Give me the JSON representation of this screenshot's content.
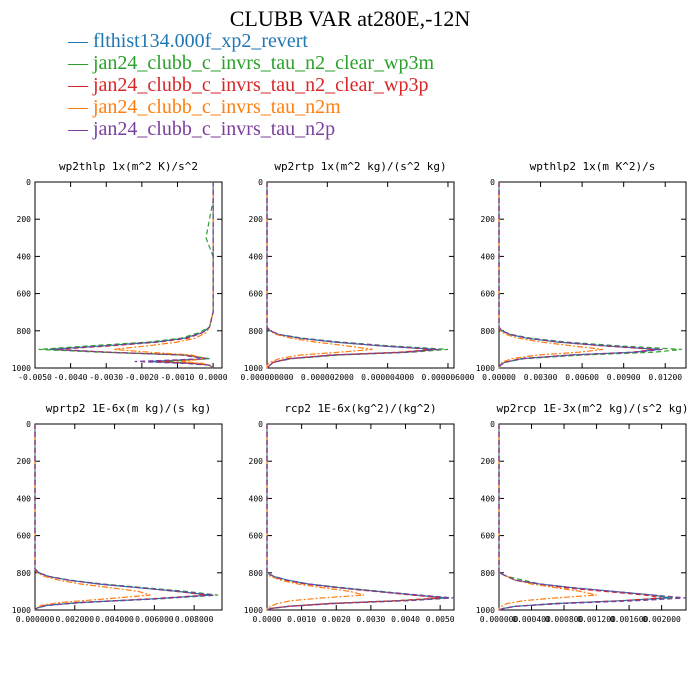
{
  "title": "CLUBB VAR at280E,-12N",
  "legend": [
    {
      "label": "— flthist134.000f_xp2_revert",
      "color": "#1f77b4"
    },
    {
      "label": "— jan24_clubb_c_invrs_tau_n2_clear_wp3m",
      "color": "#2ca02c"
    },
    {
      "label": "— jan24_clubb_c_invrs_tau_n2_clear_wp3p",
      "color": "#d62728"
    },
    {
      "label": "— jan24_clubb_c_invrs_tau_n2m",
      "color": "#ff7f0e"
    },
    {
      "label": "— jan24_clubb_c_invrs_tau_n2p",
      "color": "#7b3f9e"
    }
  ],
  "chart_data": [
    {
      "type": "line",
      "title": "wp2thlp  1x(m^2 K)/s^2",
      "xlim": [
        -0.005,
        0.00025
      ],
      "ylim": [
        1000,
        0
      ],
      "xticks": [
        -0.005,
        -0.004,
        -0.003,
        -0.002,
        -0.001,
        0.0
      ],
      "xticklabels": [
        "-0.0050",
        "-0.0040",
        "-0.0030",
        "-0.0020",
        "-0.0010",
        "0.0000"
      ],
      "yticks": [
        0,
        200,
        400,
        600,
        800,
        1000
      ],
      "y": [
        0,
        100,
        200,
        300,
        400,
        500,
        600,
        700,
        780,
        810,
        840,
        860,
        880,
        900,
        915,
        930,
        950,
        965,
        975,
        985,
        1000
      ],
      "series": [
        {
          "color": "#1f77b4",
          "dash": "",
          "values": [
            0,
            0,
            0,
            0,
            0,
            0,
            0,
            0,
            -0.0001,
            -0.0003,
            -0.0008,
            -0.0016,
            -0.003,
            -0.0046,
            -0.003,
            -0.0008,
            -0.0001,
            -0.0018,
            -0.0006,
            -0.0001,
            0
          ]
        },
        {
          "color": "#2ca02c",
          "dash": "5,3",
          "values": [
            0,
            0,
            -0.0001,
            -0.0002,
            0,
            0,
            0,
            0,
            -0.0001,
            -0.0004,
            -0.0009,
            -0.0018,
            -0.0034,
            -0.0049,
            -0.0032,
            -0.0008,
            -0.0001,
            -0.0014,
            -0.0005,
            -0.0001,
            0
          ]
        },
        {
          "color": "#d62728",
          "dash": "5,3",
          "values": [
            0,
            0,
            0,
            0,
            0,
            0,
            0,
            0,
            -0.0001,
            -0.0003,
            -0.0007,
            -0.0015,
            -0.0028,
            -0.0044,
            -0.0029,
            -0.0008,
            -0.0002,
            -0.0016,
            -0.0005,
            -0.0001,
            0
          ]
        },
        {
          "color": "#ff7f0e",
          "dash": "6,2,2,2",
          "values": [
            0,
            0,
            0,
            0,
            0,
            0,
            0,
            0,
            -0.0001,
            -0.0002,
            -0.0005,
            -0.001,
            -0.0018,
            -0.0028,
            -0.0018,
            -0.0006,
            -0.0002,
            -0.0009,
            -0.0003,
            -0.0001,
            0
          ]
        },
        {
          "color": "#7b3f9e",
          "dash": "5,3",
          "values": [
            0,
            0,
            0,
            0,
            0,
            0,
            0,
            0,
            -0.0001,
            -0.0003,
            -0.0008,
            -0.0016,
            -0.003,
            -0.0045,
            -0.003,
            -0.0009,
            -0.0002,
            -0.0022,
            -0.0008,
            -0.0001,
            0
          ]
        }
      ]
    },
    {
      "type": "line",
      "title": "wp2rtp  1x(m^2 kg)/(s^2 kg)",
      "xlim": [
        0,
        6.2e-06
      ],
      "ylim": [
        1000,
        0
      ],
      "xticks": [
        0,
        2e-06,
        4e-06,
        6e-06
      ],
      "xticklabels": [
        "0.000000000",
        "0.000002000",
        "0.000004000",
        "0.000006000"
      ],
      "yticks": [
        0,
        200,
        400,
        600,
        800,
        1000
      ],
      "y": [
        0,
        780,
        800,
        820,
        840,
        860,
        880,
        900,
        915,
        930,
        950,
        970,
        985,
        1000
      ],
      "series": [
        {
          "color": "#1f77b4",
          "dash": "",
          "values": [
            0,
            0,
            1e-07,
            4e-07,
            1.1e-06,
            2.2e-06,
            3.7e-06,
            5.6e-06,
            4.5e-06,
            2.2e-06,
            7e-07,
            2e-07,
            1e-07,
            0
          ]
        },
        {
          "color": "#2ca02c",
          "dash": "5,3",
          "values": [
            0,
            0,
            1e-07,
            4e-07,
            1.2e-06,
            2.4e-06,
            4e-06,
            6e-06,
            4.8e-06,
            2.4e-06,
            8e-07,
            2e-07,
            1e-07,
            0
          ]
        },
        {
          "color": "#d62728",
          "dash": "5,3",
          "values": [
            0,
            0,
            1e-07,
            4e-07,
            1.1e-06,
            2.2e-06,
            3.7e-06,
            5.5e-06,
            4.4e-06,
            2.1e-06,
            7e-07,
            2e-07,
            1e-07,
            0
          ]
        },
        {
          "color": "#ff7f0e",
          "dash": "6,2,2,2",
          "values": [
            0,
            0,
            1e-07,
            3e-07,
            8e-07,
            1.6e-06,
            2.6e-06,
            3.5e-06,
            2.4e-06,
            1.1e-06,
            4e-07,
            1e-07,
            0,
            0
          ]
        },
        {
          "color": "#7b3f9e",
          "dash": "5,3",
          "values": [
            0,
            0,
            1e-07,
            4e-07,
            1.1e-06,
            2.3e-06,
            3.8e-06,
            5.7e-06,
            4.7e-06,
            2.3e-06,
            8e-07,
            2e-07,
            1e-07,
            0
          ]
        }
      ]
    },
    {
      "type": "line",
      "title": "wpthlp2  1x(m K^2)/s",
      "xlim": [
        0,
        0.0135
      ],
      "ylim": [
        1000,
        0
      ],
      "xticks": [
        0,
        0.003,
        0.006,
        0.009,
        0.012
      ],
      "xticklabels": [
        "0.00000",
        "0.00300",
        "0.00600",
        "0.00900",
        "0.01200"
      ],
      "yticks": [
        0,
        200,
        400,
        600,
        800,
        1000
      ],
      "y": [
        0,
        780,
        800,
        820,
        840,
        860,
        880,
        900,
        915,
        930,
        950,
        970,
        985,
        1000
      ],
      "series": [
        {
          "color": "#1f77b4",
          "dash": "",
          "values": [
            0,
            0,
            0.0002,
            0.0008,
            0.002,
            0.0042,
            0.0075,
            0.0115,
            0.0098,
            0.0052,
            0.0016,
            0.0004,
            0.0001,
            0
          ]
        },
        {
          "color": "#2ca02c",
          "dash": "5,3",
          "values": [
            0,
            0,
            0.0002,
            0.0009,
            0.0023,
            0.0048,
            0.0085,
            0.0132,
            0.0112,
            0.006,
            0.0018,
            0.0004,
            0.0001,
            0
          ]
        },
        {
          "color": "#d62728",
          "dash": "5,3",
          "values": [
            0,
            0,
            0.0002,
            0.0008,
            0.002,
            0.0042,
            0.0073,
            0.0112,
            0.0096,
            0.0051,
            0.0015,
            0.0004,
            0.0001,
            0
          ]
        },
        {
          "color": "#ff7f0e",
          "dash": "6,2,2,2",
          "values": [
            0,
            0,
            0.0001,
            0.0005,
            0.0014,
            0.003,
            0.0052,
            0.0075,
            0.0058,
            0.0028,
            0.0009,
            0.0002,
            0.0001,
            0
          ]
        },
        {
          "color": "#7b3f9e",
          "dash": "5,3",
          "values": [
            0,
            0,
            0.0002,
            0.0008,
            0.0021,
            0.0044,
            0.0078,
            0.0118,
            0.01,
            0.0054,
            0.0017,
            0.0004,
            0.0001,
            0
          ]
        }
      ]
    },
    {
      "type": "line",
      "title": "wprtp2  1E-6x(m kg)/(s kg)",
      "xlim": [
        0,
        0.0094
      ],
      "ylim": [
        1000,
        0
      ],
      "xticks": [
        0,
        0.002,
        0.004,
        0.006,
        0.008
      ],
      "xticklabels": [
        "0.000000",
        "0.002000",
        "0.004000",
        "0.006000",
        "0.008000"
      ],
      "yticks": [
        0,
        200,
        400,
        600,
        800,
        1000
      ],
      "y": [
        0,
        780,
        800,
        820,
        840,
        860,
        880,
        900,
        920,
        940,
        960,
        975,
        990,
        1000
      ],
      "series": [
        {
          "color": "#1f77b4",
          "dash": "",
          "values": [
            0,
            0,
            0.0002,
            0.0007,
            0.0017,
            0.0032,
            0.0052,
            0.0072,
            0.0088,
            0.006,
            0.0022,
            0.0006,
            0.0001,
            0
          ]
        },
        {
          "color": "#2ca02c",
          "dash": "5,3",
          "values": [
            0,
            0,
            0.0002,
            0.0007,
            0.0018,
            0.0034,
            0.0055,
            0.0076,
            0.0092,
            0.0063,
            0.0023,
            0.0006,
            0.0001,
            0
          ]
        },
        {
          "color": "#d62728",
          "dash": "5,3",
          "values": [
            0,
            0,
            0.0002,
            0.0007,
            0.0017,
            0.0032,
            0.0052,
            0.0071,
            0.0086,
            0.0058,
            0.0021,
            0.0005,
            0.0001,
            0
          ]
        },
        {
          "color": "#ff7f0e",
          "dash": "6,2,2,2",
          "values": [
            0,
            0,
            0.0001,
            0.0005,
            0.0012,
            0.0023,
            0.0038,
            0.0052,
            0.0058,
            0.0036,
            0.0012,
            0.0003,
            0.0001,
            0
          ]
        },
        {
          "color": "#7b3f9e",
          "dash": "5,3",
          "values": [
            0,
            0,
            0.0002,
            0.0007,
            0.0017,
            0.0033,
            0.0053,
            0.0073,
            0.009,
            0.0062,
            0.0023,
            0.0006,
            0.0001,
            0
          ]
        }
      ]
    },
    {
      "type": "line",
      "title": "rcp2  1E-6x(kg^2)/(kg^2)",
      "xlim": [
        0,
        0.0054
      ],
      "ylim": [
        1000,
        0
      ],
      "xticks": [
        0,
        0.001,
        0.002,
        0.003,
        0.004,
        0.005
      ],
      "xticklabels": [
        "0.0000",
        "0.0010",
        "0.0020",
        "0.0030",
        "0.0040",
        "0.0050"
      ],
      "yticks": [
        0,
        200,
        400,
        600,
        800,
        1000
      ],
      "y": [
        0,
        800,
        820,
        840,
        860,
        880,
        900,
        920,
        935,
        950,
        965,
        980,
        992,
        1000
      ],
      "series": [
        {
          "color": "#1f77b4",
          "dash": "",
          "values": [
            0,
            0,
            0.0002,
            0.0006,
            0.0012,
            0.0021,
            0.0032,
            0.0043,
            0.0052,
            0.0038,
            0.0018,
            0.0006,
            0.0001,
            0
          ]
        },
        {
          "color": "#2ca02c",
          "dash": "5,3",
          "values": [
            0,
            0,
            0.0002,
            0.0006,
            0.0012,
            0.0022,
            0.0033,
            0.0044,
            0.0053,
            0.0039,
            0.0019,
            0.0006,
            0.0001,
            0
          ]
        },
        {
          "color": "#d62728",
          "dash": "5,3",
          "values": [
            0,
            0,
            0.0002,
            0.0005,
            0.0011,
            0.002,
            0.0031,
            0.0042,
            0.005,
            0.0037,
            0.0018,
            0.0006,
            0.0001,
            0
          ]
        },
        {
          "color": "#ff7f0e",
          "dash": "6,2,2,2",
          "values": [
            0,
            0,
            0.0001,
            0.0004,
            0.0009,
            0.0016,
            0.0024,
            0.0028,
            0.0016,
            0.0007,
            0.0003,
            0.0001,
            0,
            0
          ]
        },
        {
          "color": "#7b3f9e",
          "dash": "5,3",
          "values": [
            0,
            0,
            0.0002,
            0.0006,
            0.0012,
            0.0021,
            0.0032,
            0.0044,
            0.0054,
            0.0041,
            0.002,
            0.0007,
            0.0001,
            0
          ]
        }
      ]
    },
    {
      "type": "line",
      "title": "wp2rcp  1E-3x(m^2 kg)/(s^2 kg)",
      "xlim": [
        0,
        0.0023
      ],
      "ylim": [
        1000,
        0
      ],
      "xticks": [
        0,
        0.0004,
        0.0008,
        0.0012,
        0.0016,
        0.002
      ],
      "xticklabels": [
        "0.000000",
        "0.000400",
        "0.000800",
        "0.001200",
        "0.001600",
        "0.002000"
      ],
      "yticks": [
        0,
        200,
        400,
        600,
        800,
        1000
      ],
      "y": [
        0,
        800,
        820,
        840,
        860,
        880,
        900,
        920,
        935,
        950,
        965,
        980,
        992,
        1000
      ],
      "series": [
        {
          "color": "#1f77b4",
          "dash": "",
          "values": [
            0,
            0,
            0.0001,
            0.0002,
            0.0005,
            0.0009,
            0.0014,
            0.0019,
            0.0021,
            0.0015,
            0.0007,
            0.0002,
            5e-05,
            0
          ]
        },
        {
          "color": "#2ca02c",
          "dash": "5,3",
          "values": [
            0,
            0,
            0.0001,
            0.0003,
            0.0005,
            0.0009,
            0.0014,
            0.0019,
            0.0022,
            0.0016,
            0.0007,
            0.0002,
            5e-05,
            0
          ]
        },
        {
          "color": "#d62728",
          "dash": "5,3",
          "values": [
            0,
            0,
            0.0001,
            0.0002,
            0.0005,
            0.0008,
            0.0013,
            0.0018,
            0.002,
            0.0015,
            0.0007,
            0.0002,
            5e-05,
            0
          ]
        },
        {
          "color": "#ff7f0e",
          "dash": "6,2,2,2",
          "values": [
            0,
            0,
            0.0001,
            0.0002,
            0.0004,
            0.0007,
            0.001,
            0.0012,
            0.0007,
            0.0003,
            0.0001,
            3e-05,
            0,
            0
          ]
        },
        {
          "color": "#7b3f9e",
          "dash": "5,3",
          "values": [
            0,
            0,
            0.0001,
            0.0002,
            0.0005,
            0.0009,
            0.0014,
            0.0019,
            0.0023,
            0.0017,
            0.0008,
            0.0002,
            5e-05,
            0
          ]
        }
      ]
    }
  ]
}
